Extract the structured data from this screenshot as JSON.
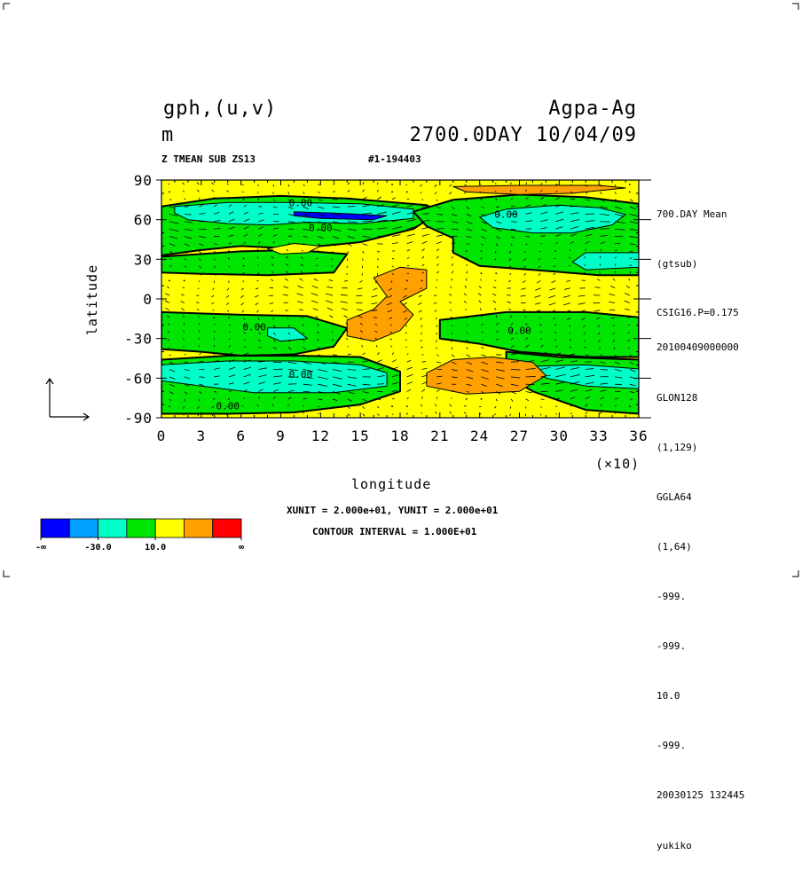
{
  "header": {
    "variable": "gph,(u,v)",
    "unit": "m",
    "experiment": "Agpa-Ag",
    "time": "2700.0DAY 10/04/09",
    "subtitle_left": "Z TMEAN SUB ZS13",
    "subtitle_right": "#1-194403"
  },
  "side_info": {
    "top": [
      "700.DAY Mean",
      "(gtsub)",
      "CSIG16.P=0.175"
    ],
    "bottom": [
      "20100409000000",
      "GLON128",
      "(1,129)",
      "GGLA64",
      "(1,64)",
      "-999.",
      "-999.",
      "10.0",
      "-999.",
      "20030125 132445",
      "yukiko"
    ]
  },
  "footer": {
    "units_line": "XUNIT = 2.000e+01, YUNIT = 2.000e+01",
    "contour_line": "CONTOUR INTERVAL = 1.000E+01"
  },
  "colorbar": {
    "colors": [
      "#0000ff",
      "#00a0ff",
      "#00ffc8",
      "#00e600",
      "#ffff00",
      "#ffa000",
      "#ff0000"
    ],
    "labels": [
      "-∞",
      "-30.0",
      "10.0",
      "∞"
    ]
  },
  "chart_data": {
    "type": "heatmap",
    "xlabel": "longitude",
    "ylabel": "latitude",
    "x_multiplier": "(×10)",
    "xlim": [
      0,
      36
    ],
    "ylim": [
      -90,
      90
    ],
    "xticks": [
      "0",
      "3",
      "6",
      "9",
      "12",
      "15",
      "18",
      "21",
      "24",
      "27",
      "30",
      "33",
      "36"
    ],
    "yticks": [
      "90",
      "60",
      "30",
      "0",
      "-30",
      "-60",
      "-90"
    ],
    "contour_labels": [
      {
        "text": "0.00",
        "lon": 10.5,
        "lat": 73
      },
      {
        "text": "0.00",
        "lon": 12,
        "lat": 54
      },
      {
        "text": "0.00",
        "lon": 26,
        "lat": 64
      },
      {
        "text": "0.00",
        "lon": 7,
        "lat": -21
      },
      {
        "text": "0.00",
        "lon": 27,
        "lat": -24
      },
      {
        "text": "0.00",
        "lon": 10.5,
        "lat": -57
      },
      {
        "text": "0.00",
        "lon": 5,
        "lat": -81
      }
    ],
    "regions": [
      {
        "level": "green",
        "points": [
          [
            0,
            70
          ],
          [
            4,
            76
          ],
          [
            9,
            78
          ],
          [
            14,
            76
          ],
          [
            20,
            71
          ],
          [
            21,
            66
          ],
          [
            19,
            53
          ],
          [
            15,
            43
          ],
          [
            10,
            38
          ],
          [
            6,
            40
          ],
          [
            3,
            37
          ],
          [
            0,
            33
          ]
        ]
      },
      {
        "level": "green",
        "points": [
          [
            19,
            66
          ],
          [
            22,
            75
          ],
          [
            27,
            79
          ],
          [
            32,
            77
          ],
          [
            36,
            72
          ],
          [
            36,
            18
          ],
          [
            33,
            18
          ],
          [
            28,
            22
          ],
          [
            24,
            25
          ],
          [
            22,
            35
          ],
          [
            22,
            46
          ],
          [
            20,
            55
          ]
        ]
      },
      {
        "level": "green",
        "points": [
          [
            0,
            32
          ],
          [
            6,
            36
          ],
          [
            10,
            37
          ],
          [
            14,
            34
          ],
          [
            13,
            20
          ],
          [
            8,
            18
          ],
          [
            3,
            19
          ],
          [
            0,
            20
          ]
        ]
      },
      {
        "level": "green",
        "points": [
          [
            0,
            -10
          ],
          [
            6,
            -12
          ],
          [
            11,
            -13
          ],
          [
            14,
            -22
          ],
          [
            13,
            -36
          ],
          [
            10,
            -42
          ],
          [
            6,
            -43
          ],
          [
            3,
            -40
          ],
          [
            0,
            -38
          ]
        ]
      },
      {
        "level": "green",
        "points": [
          [
            21,
            -30
          ],
          [
            21,
            -16
          ],
          [
            26,
            -10
          ],
          [
            32,
            -10
          ],
          [
            36,
            -14
          ],
          [
            36,
            -44
          ],
          [
            32,
            -44
          ],
          [
            27,
            -40
          ],
          [
            24,
            -34
          ]
        ]
      },
      {
        "level": "green",
        "points": [
          [
            0,
            -46
          ],
          [
            5,
            -43
          ],
          [
            10,
            -43
          ],
          [
            15,
            -44
          ],
          [
            18,
            -55
          ],
          [
            18,
            -70
          ],
          [
            15,
            -80
          ],
          [
            10,
            -86
          ],
          [
            5,
            -87
          ],
          [
            0,
            -87
          ]
        ]
      },
      {
        "level": "green",
        "points": [
          [
            26,
            -40
          ],
          [
            30,
            -44
          ],
          [
            36,
            -46
          ],
          [
            36,
            -87
          ],
          [
            32,
            -84
          ],
          [
            28,
            -70
          ],
          [
            26,
            -58
          ]
        ]
      },
      {
        "level": "cyan",
        "points": [
          [
            1,
            70
          ],
          [
            5,
            73
          ],
          [
            10,
            73
          ],
          [
            15,
            72
          ],
          [
            19,
            68
          ],
          [
            19,
            61
          ],
          [
            15,
            57
          ],
          [
            11,
            58
          ],
          [
            8,
            56
          ],
          [
            5,
            57
          ],
          [
            2,
            60
          ],
          [
            1,
            65
          ]
        ]
      },
      {
        "level": "cyan",
        "points": [
          [
            24,
            62
          ],
          [
            26,
            68
          ],
          [
            30,
            71
          ],
          [
            33,
            69
          ],
          [
            35,
            64
          ],
          [
            34,
            56
          ],
          [
            31,
            50
          ],
          [
            28,
            50
          ],
          [
            25,
            54
          ]
        ]
      },
      {
        "level": "cyan",
        "points": [
          [
            32,
            35
          ],
          [
            36,
            35
          ],
          [
            36,
            24
          ],
          [
            32,
            22
          ],
          [
            31,
            28
          ]
        ]
      },
      {
        "level": "cyan",
        "points": [
          [
            8,
            -22
          ],
          [
            10,
            -22
          ],
          [
            11,
            -30
          ],
          [
            9,
            -32
          ],
          [
            8,
            -28
          ]
        ]
      },
      {
        "level": "cyan",
        "points": [
          [
            0,
            -50
          ],
          [
            5,
            -47
          ],
          [
            10,
            -47
          ],
          [
            15,
            -50
          ],
          [
            17,
            -56
          ],
          [
            17,
            -66
          ],
          [
            13,
            -71
          ],
          [
            7,
            -71
          ],
          [
            3,
            -66
          ],
          [
            0,
            -62
          ]
        ]
      },
      {
        "level": "cyan",
        "points": [
          [
            28,
            -51
          ],
          [
            32,
            -50
          ],
          [
            36,
            -53
          ],
          [
            36,
            -68
          ],
          [
            32,
            -66
          ],
          [
            29,
            -60
          ]
        ]
      },
      {
        "level": "blue",
        "points": [
          [
            10,
            66
          ],
          [
            13,
            65
          ],
          [
            17,
            63
          ],
          [
            16,
            60
          ],
          [
            12,
            61
          ],
          [
            10,
            63
          ]
        ]
      },
      {
        "level": "orange",
        "points": [
          [
            22,
            85
          ],
          [
            27,
            86
          ],
          [
            33,
            86
          ],
          [
            35,
            84
          ],
          [
            31,
            80
          ],
          [
            27,
            79
          ],
          [
            23,
            81
          ]
        ]
      },
      {
        "level": "orange",
        "points": [
          [
            16,
            16
          ],
          [
            18,
            24
          ],
          [
            20,
            22
          ],
          [
            20,
            8
          ],
          [
            18,
            -2
          ],
          [
            19,
            -12
          ],
          [
            18,
            -24
          ],
          [
            16,
            -32
          ],
          [
            14,
            -28
          ],
          [
            14,
            -16
          ],
          [
            16,
            -8
          ],
          [
            17,
            2
          ]
        ]
      },
      {
        "level": "orange",
        "points": [
          [
            20,
            -56
          ],
          [
            22,
            -46
          ],
          [
            25,
            -44
          ],
          [
            28,
            -48
          ],
          [
            29,
            -58
          ],
          [
            27,
            -70
          ],
          [
            23,
            -72
          ],
          [
            20,
            -66
          ]
        ]
      },
      {
        "level": "yellow",
        "points": [
          [
            8,
            38
          ],
          [
            10,
            42
          ],
          [
            12,
            40
          ],
          [
            11,
            35
          ],
          [
            9,
            34
          ]
        ]
      }
    ]
  }
}
